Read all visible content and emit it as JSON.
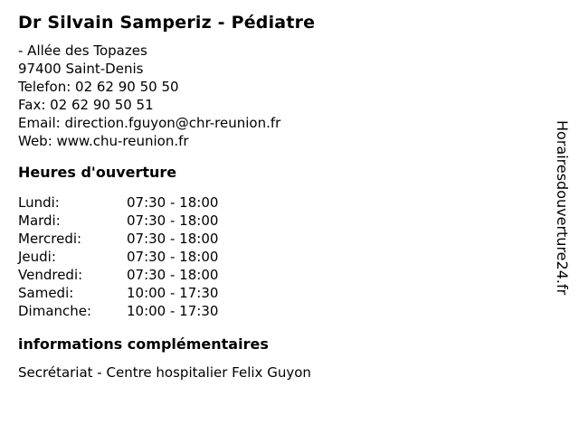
{
  "page": {
    "title": "Dr Silvain Samperiz - Pédiatre"
  },
  "contact": {
    "lines": [
      "- Allée des Topazes",
      "97400 Saint-Denis",
      "Telefon: 02 62 90 50 50",
      "Fax: 02 62 90 50 51",
      "Email: direction.fguyon@chr-reunion.fr",
      "Web: www.chu-reunion.fr"
    ]
  },
  "hours": {
    "heading": "Heures d'ouverture",
    "rows": [
      {
        "day": "Lundi:",
        "time": "07:30 - 18:00"
      },
      {
        "day": "Mardi:",
        "time": "07:30 - 18:00"
      },
      {
        "day": "Mercredi:",
        "time": "07:30 - 18:00"
      },
      {
        "day": "Jeudi:",
        "time": "07:30 - 18:00"
      },
      {
        "day": "Vendredi:",
        "time": "07:30 - 18:00"
      },
      {
        "day": "Samedi:",
        "time": "10:00 - 17:30"
      },
      {
        "day": "Dimanche:",
        "time": "10:00 - 17:30"
      }
    ]
  },
  "info": {
    "heading": "informations complémentaires",
    "text": "Secrétariat - Centre hospitalier Felix Guyon"
  },
  "watermark": {
    "text": "Horairesdouverture24.fr"
  },
  "colors": {
    "text": "#000000",
    "background": "#ffffff"
  }
}
